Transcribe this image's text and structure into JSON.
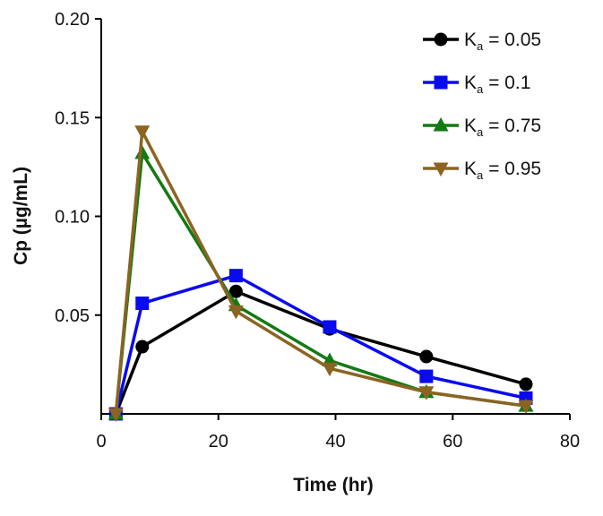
{
  "chart_data": {
    "type": "line",
    "xlabel": "Time (hr)",
    "ylabel": "Cp (µg/mL)",
    "xlim": [
      0,
      80
    ],
    "ylim": [
      0,
      0.2
    ],
    "x_ticks": [
      0,
      20,
      40,
      60,
      80
    ],
    "x_tick_labels": [
      "0",
      "20",
      "40",
      "60",
      "80"
    ],
    "y_ticks": [
      0.05,
      0.1,
      0.15,
      0.2
    ],
    "y_tick_labels": [
      "0.05",
      "0.10",
      "0.15",
      "0.20"
    ],
    "grid": false,
    "legend_position": "top-right",
    "x": [
      2.5,
      7,
      23,
      39,
      55.5,
      72.5
    ],
    "series": [
      {
        "name": "Ka = 0.05",
        "legend_symbol": "K",
        "legend_sub": "a",
        "legend_value": " = 0.05",
        "color": "#000000",
        "marker": "circle",
        "values": [
          0,
          0.034,
          0.062,
          0.043,
          0.029,
          0.015
        ]
      },
      {
        "name": "Ka = 0.1",
        "legend_symbol": "K",
        "legend_sub": "a",
        "legend_value": " = 0.1",
        "color": "#0a0aef",
        "marker": "square",
        "values": [
          0,
          0.056,
          0.07,
          0.044,
          0.019,
          0.008
        ]
      },
      {
        "name": "Ka = 0.75",
        "legend_symbol": "K",
        "legend_sub": "a",
        "legend_value": " = 0.75",
        "color": "#137a13",
        "marker": "triangle-up",
        "values": [
          0,
          0.132,
          0.055,
          0.027,
          0.011,
          0.004
        ]
      },
      {
        "name": "Ka = 0.95",
        "legend_symbol": "K",
        "legend_sub": "a",
        "legend_value": " = 0.95",
        "color": "#8b6422",
        "marker": "triangle-down",
        "values": [
          0,
          0.143,
          0.052,
          0.023,
          0.011,
          0.004
        ]
      }
    ]
  }
}
